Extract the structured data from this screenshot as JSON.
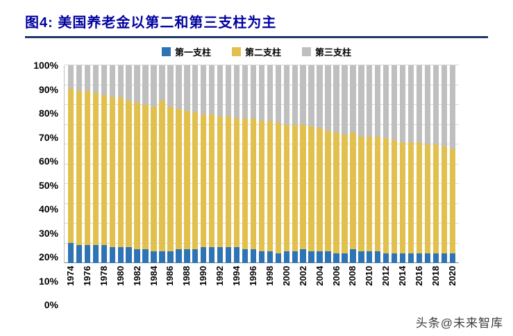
{
  "page": {
    "title": "图4:  美国养老金以第二和第三支柱为主",
    "watermark": "头条@未来智库"
  },
  "legend": [
    {
      "label": "第一支柱",
      "color": "#2e74b5"
    },
    {
      "label": "第二支柱",
      "color": "#e2c04d"
    },
    {
      "label": "第三支柱",
      "color": "#bfbfbf"
    }
  ],
  "chart_data": {
    "type": "bar",
    "stacked": true,
    "percent": true,
    "title": "美国养老金以第二和第三支柱为主",
    "xlabel": "",
    "ylabel": "",
    "ylim": [
      0,
      100
    ],
    "grid": true,
    "legend_position": "top",
    "x_label_interval": 2,
    "yticks": [
      "0%",
      "10%",
      "20%",
      "30%",
      "40%",
      "50%",
      "60%",
      "70%",
      "80%",
      "90%",
      "100%"
    ],
    "x": [
      1974,
      1975,
      1976,
      1977,
      1978,
      1979,
      1980,
      1981,
      1982,
      1983,
      1984,
      1985,
      1986,
      1987,
      1988,
      1989,
      1990,
      1991,
      1992,
      1993,
      1994,
      1995,
      1996,
      1997,
      1998,
      1999,
      2000,
      2001,
      2002,
      2003,
      2004,
      2005,
      2006,
      2007,
      2008,
      2009,
      2010,
      2011,
      2012,
      2013,
      2014,
      2015,
      2016,
      2017,
      2018,
      2019,
      2020
    ],
    "series": [
      {
        "name": "第一支柱",
        "color": "#2e74b5",
        "values": [
          10,
          9,
          9,
          9,
          9,
          8,
          8,
          8,
          7,
          7,
          6,
          6,
          6,
          7,
          7,
          7,
          8,
          8,
          8,
          8,
          8,
          7,
          7,
          6,
          6,
          5,
          6,
          6,
          7,
          6,
          6,
          6,
          5,
          5,
          7,
          6,
          6,
          6,
          5,
          5,
          5,
          5,
          5,
          5,
          5,
          5,
          5
        ]
      },
      {
        "name": "第二支柱",
        "color": "#e2c04d",
        "values": [
          78,
          78,
          78,
          77,
          76,
          76,
          76,
          74,
          74,
          73,
          73,
          76,
          73,
          71,
          70,
          69,
          67,
          67,
          66,
          66,
          65,
          66,
          66,
          66,
          66,
          66,
          64,
          64,
          63,
          63,
          62,
          61,
          61,
          60,
          59,
          58,
          58,
          58,
          58,
          57,
          56,
          56,
          56,
          55,
          55,
          54,
          53
        ]
      },
      {
        "name": "第三支柱",
        "color": "#bfbfbf",
        "values": [
          12,
          13,
          13,
          14,
          15,
          16,
          16,
          18,
          19,
          20,
          21,
          18,
          21,
          22,
          23,
          24,
          25,
          25,
          26,
          26,
          27,
          27,
          27,
          28,
          28,
          29,
          30,
          30,
          30,
          31,
          32,
          33,
          34,
          35,
          34,
          36,
          36,
          36,
          37,
          38,
          39,
          39,
          39,
          40,
          40,
          41,
          42
        ]
      }
    ]
  }
}
